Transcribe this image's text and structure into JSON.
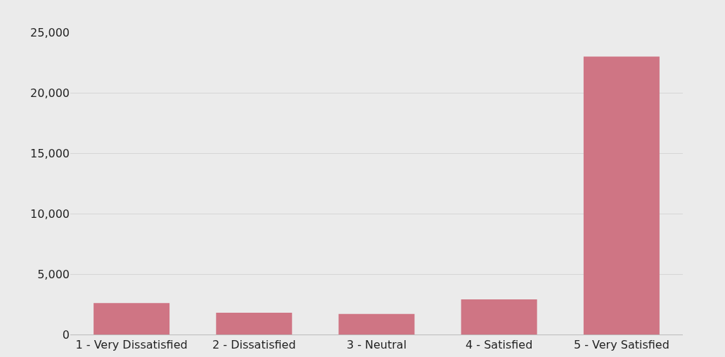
{
  "chart_data": {
    "type": "bar",
    "categories": [
      "1 - Very Dissatisfied",
      "2 - Dissatisfied",
      "3 - Neutral",
      "4 - Satisfied",
      "5 - Very Satisfied"
    ],
    "values": [
      2600,
      1800,
      1700,
      2900,
      23000
    ],
    "color": "#cf7584",
    "ylim": [
      0,
      25000
    ],
    "yticks": [
      0,
      {
        "value": 5000,
        "label": "5,000"
      },
      {
        "value": 10000,
        "label": "10,000"
      },
      {
        "value": 15000,
        "label": "15,000"
      },
      {
        "value": 20000,
        "label": "20,000"
      },
      {
        "value": 25000,
        "label": "25,000"
      }
    ],
    "grid": "y"
  }
}
